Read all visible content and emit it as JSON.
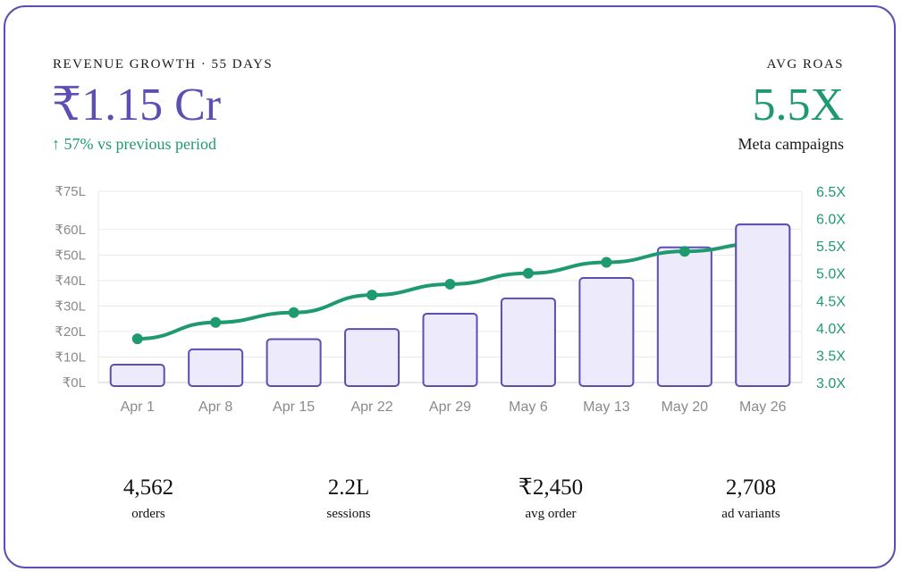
{
  "header": {
    "kicker_left": "REVENUE GROWTH · 55 DAYS",
    "revenue_value": "₹1.15 Cr",
    "growth_note": "↑ 57% vs previous period",
    "kicker_right": "AVG ROAS",
    "roas_value": "5.5X",
    "roas_note": "Meta campaigns"
  },
  "colors": {
    "accent": "#5b4fb3",
    "bar_fill": "#eceafb",
    "line": "#1f9a6e",
    "grid": "#e9e9ee"
  },
  "chart_data": {
    "type": "bar",
    "categories": [
      "Apr 1",
      "Apr 8",
      "Apr 15",
      "Apr 22",
      "Apr 29",
      "May 6",
      "May 13",
      "May 20",
      "May 26"
    ],
    "series": [
      {
        "type": "bar",
        "axis": "left",
        "unit": "₹L",
        "values": [
          7,
          13,
          17,
          21,
          27,
          33,
          41,
          53,
          62
        ]
      },
      {
        "type": "line",
        "axis": "right",
        "unit": "X",
        "values": [
          3.8,
          4.1,
          4.28,
          4.6,
          4.8,
          5.0,
          5.2,
          5.4,
          5.55
        ]
      }
    ],
    "y_left": {
      "ticks": [
        0,
        10,
        20,
        30,
        40,
        50,
        60,
        75
      ],
      "labels": [
        "₹0L",
        "₹10L",
        "₹20L",
        "₹30L",
        "₹40L",
        "₹50L",
        "₹60L",
        "₹75L"
      ],
      "ylim": [
        0,
        75
      ]
    },
    "y_right": {
      "ticks": [
        3.0,
        3.5,
        4.0,
        4.5,
        5.0,
        5.5,
        6.0,
        6.5
      ],
      "labels": [
        "3.0X",
        "3.5X",
        "4.0X",
        "4.5X",
        "5.0X",
        "5.5X",
        "6.0X",
        "6.5X"
      ],
      "ylim": [
        3.0,
        6.5
      ]
    },
    "grid": true
  },
  "stats": [
    {
      "value": "4,562",
      "label": "orders"
    },
    {
      "value": "2.2L",
      "label": "sessions"
    },
    {
      "value": "₹2,450",
      "label": "avg order"
    },
    {
      "value": "2,708",
      "label": "ad variants"
    }
  ]
}
